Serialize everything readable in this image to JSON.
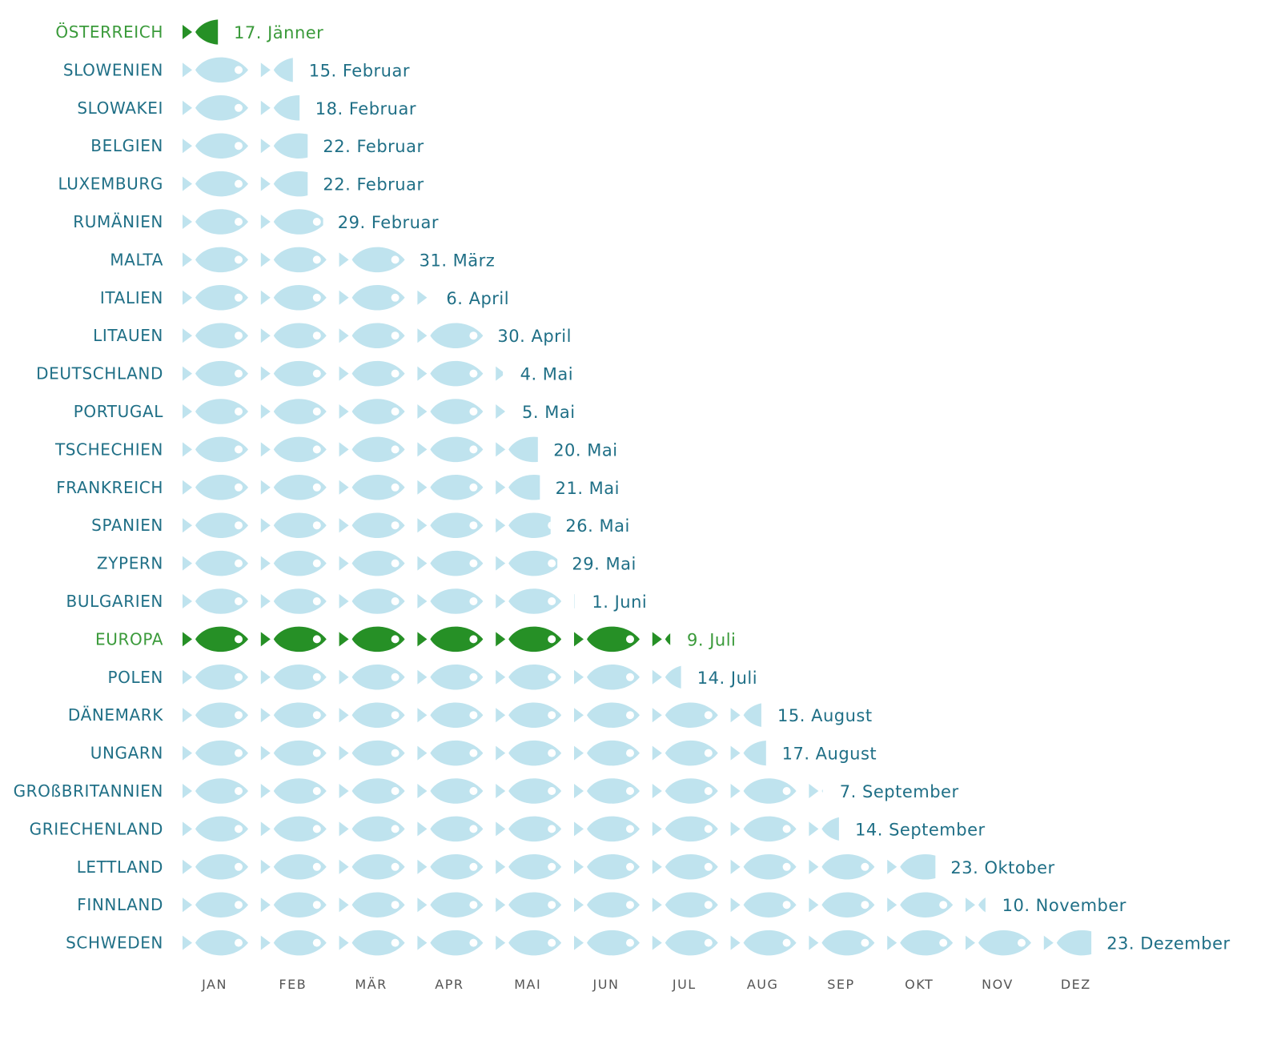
{
  "colors": {
    "country_text": "#1f6f86",
    "highlight_text": "#3a9a3a",
    "fish_light": "#bfe3ee",
    "fish_highlight": "#269026",
    "eye": "#ffffff",
    "month_text": "#555555"
  },
  "chart_data": {
    "type": "pictograph",
    "title": "",
    "xlabel": "",
    "ylabel": "",
    "unit": "months of the year",
    "categories": [
      "JAN",
      "FEB",
      "MÄR",
      "APR",
      "MAI",
      "JUN",
      "JUL",
      "AUG",
      "SEP",
      "OKT",
      "NOV",
      "DEZ"
    ],
    "rows": [
      {
        "country": "ÖSTERREICH",
        "date": "17. Jänner",
        "value": 0.55,
        "highlight": true
      },
      {
        "country": "SLOWENIEN",
        "date": "15. Februar",
        "value": 1.5
      },
      {
        "country": "SLOWAKEI",
        "date": "18. Februar",
        "value": 1.6
      },
      {
        "country": "BELGIEN",
        "date": "22. Februar",
        "value": 1.72
      },
      {
        "country": "LUXEMBURG",
        "date": "22. Februar",
        "value": 1.72
      },
      {
        "country": "RUMÄNIEN",
        "date": "29. Februar",
        "value": 1.95
      },
      {
        "country": "MALTA",
        "date": "31. März",
        "value": 3.0
      },
      {
        "country": "ITALIEN",
        "date": "6. April",
        "value": 3.2
      },
      {
        "country": "LITAUEN",
        "date": "30. April",
        "value": 4.0
      },
      {
        "country": "DEUTSCHLAND",
        "date": "4. Mai",
        "value": 4.13
      },
      {
        "country": "PORTUGAL",
        "date": "5. Mai",
        "value": 4.16
      },
      {
        "country": "TSCHECHIEN",
        "date": "20. Mai",
        "value": 4.65
      },
      {
        "country": "FRANKREICH",
        "date": "21. Mai",
        "value": 4.68
      },
      {
        "country": "SPANIEN",
        "date": "26. Mai",
        "value": 4.84
      },
      {
        "country": "ZYPERN",
        "date": "29. Mai",
        "value": 4.94
      },
      {
        "country": "BULGARIEN",
        "date": "1. Juni",
        "value": 5.03
      },
      {
        "country": "EUROPA",
        "date": "9. Juli",
        "value": 6.29,
        "highlight": true
      },
      {
        "country": "POLEN",
        "date": "14. Juli",
        "value": 6.45
      },
      {
        "country": "DÄNEMARK",
        "date": "15. August",
        "value": 7.48
      },
      {
        "country": "UNGARN",
        "date": "17. August",
        "value": 7.55
      },
      {
        "country": "GROßBRITANNIEN",
        "date": "7. September",
        "value": 8.23
      },
      {
        "country": "GRIECHENLAND",
        "date": "14. September",
        "value": 8.47
      },
      {
        "country": "LETTLAND",
        "date": "23. Oktober",
        "value": 9.74
      },
      {
        "country": "FINNLAND",
        "date": "10. November",
        "value": 10.32
      },
      {
        "country": "SCHWEDEN",
        "date": "23. Dezember",
        "value": 11.73
      }
    ]
  }
}
